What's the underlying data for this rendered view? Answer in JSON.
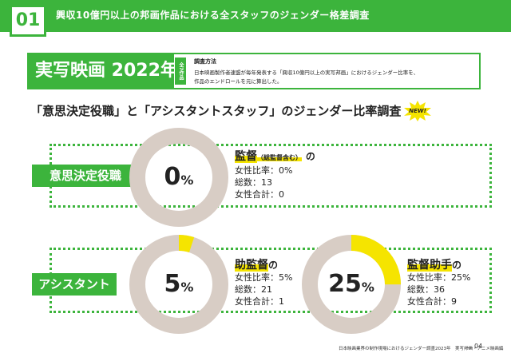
{
  "header": {
    "page_number": "01",
    "title": "興収10億円以上の邦画作品における全スタッフのジェンダー格差調査"
  },
  "section": {
    "title": "実写映画 2022年",
    "side_label": "全7作品",
    "method_title": "調査方法",
    "method_lines": [
      "日本映画製作者連盟が毎年発表する「興収10億円以上の実写邦画」におけるジェンダー比率を、",
      "作品のエンドロールを元に算出した。"
    ]
  },
  "main_heading": "「意思決定役職」と「アシスタントスタッフ」のジェンダー比率調査",
  "new_badge": "NEW!",
  "categories": {
    "decision": "意思決定役職",
    "assistant": "アシスタント"
  },
  "colors": {
    "accent_green": "#3cb43c",
    "donut_base": "#d8cdc5",
    "donut_fill": "#f5e400"
  },
  "roles": [
    {
      "name": "監督",
      "note": "（総監督含む）",
      "suffix": "の",
      "ratio_label": "女性比率：0%",
      "total_label": "総数：13",
      "female_label": "女性合計：0",
      "percent": 0,
      "percent_text": "0",
      "percent_unit": "%"
    },
    {
      "name": "助監督",
      "note": "",
      "suffix": "の",
      "ratio_label": "女性比率：5%",
      "total_label": "総数：21",
      "female_label": "女性合計：1",
      "percent": 5,
      "percent_text": "5",
      "percent_unit": "%"
    },
    {
      "name": "監督助手",
      "note": "",
      "suffix": "の",
      "ratio_label": "女性比率：25%",
      "total_label": "総数：36",
      "female_label": "女性合計：9",
      "percent": 25,
      "percent_text": "25",
      "percent_unit": "%"
    }
  ],
  "footer": {
    "source": "日本映画業界の制作現場におけるジェンダー調査2023年　実写邦画・アニメ映画編",
    "page": "04"
  }
}
